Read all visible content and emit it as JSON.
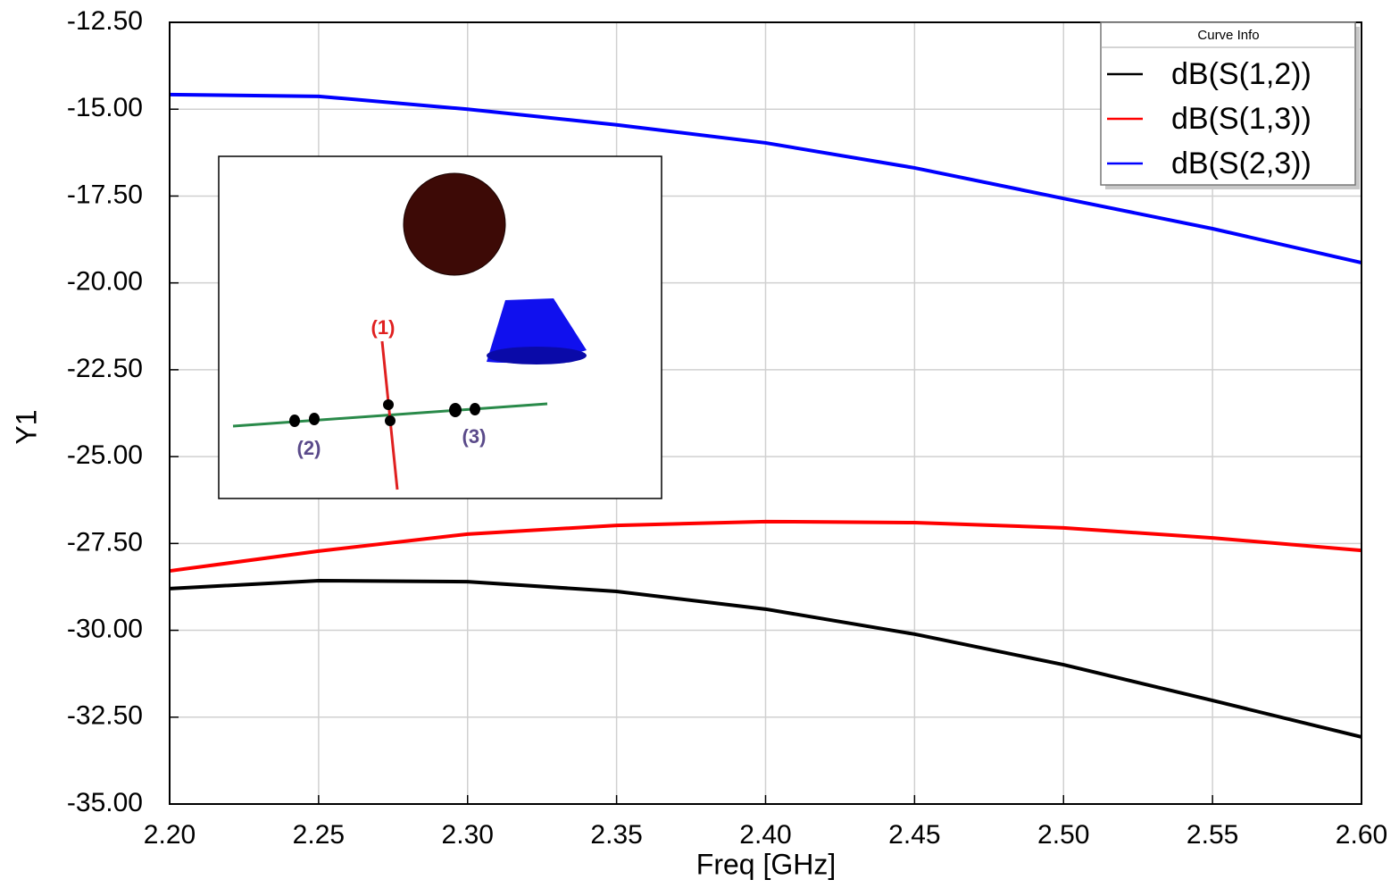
{
  "chart_data": {
    "type": "line",
    "x_label": "Freq [GHz]",
    "y_label": "Y1",
    "legend_title": "Curve Info",
    "legend_position": "upper right",
    "grid": true,
    "x": [
      2.2,
      2.25,
      2.3,
      2.35,
      2.4,
      2.45,
      2.5,
      2.55,
      2.6
    ],
    "series": [
      {
        "name": "dB(S(1,2))",
        "color": "#000000",
        "values": [
          -28.8,
          -28.57,
          -28.6,
          -28.88,
          -29.39,
          -30.11,
          -30.99,
          -32.02,
          -33.07
        ]
      },
      {
        "name": "dB(S(1,3))",
        "color": "#ff0000",
        "values": [
          -28.29,
          -27.72,
          -27.23,
          -26.98,
          -26.87,
          -26.9,
          -27.05,
          -27.34,
          -27.7
        ]
      },
      {
        "name": "dB(S(2,3))",
        "color": "#0000ff",
        "values": [
          -14.58,
          -14.63,
          -15.0,
          -15.45,
          -15.97,
          -16.69,
          -17.57,
          -18.44,
          -19.42
        ]
      }
    ],
    "xlim": [
      2.2,
      2.6
    ],
    "xticks": [
      {
        "value": 2.2,
        "label": "2.20"
      },
      2.25,
      {
        "value": 2.3,
        "label": "2.30"
      },
      2.35,
      {
        "value": 2.4,
        "label": "2.40"
      },
      2.45,
      {
        "value": 2.5,
        "label": "2.50"
      },
      2.55,
      {
        "value": 2.6,
        "label": "2.60"
      }
    ],
    "ylim": [
      -35,
      -12.5
    ],
    "yticks": [
      {
        "value": -12.5,
        "label": "-12.50"
      },
      {
        "value": -15,
        "label": "-15.00"
      },
      {
        "value": -17.5,
        "label": "-17.50"
      },
      {
        "value": -20,
        "label": "-20.00"
      },
      {
        "value": -22.5,
        "label": "-22.50"
      },
      {
        "value": -25,
        "label": "-25.00"
      },
      {
        "value": -27.5,
        "label": "-27.50"
      },
      {
        "value": -30,
        "label": "-30.00"
      },
      {
        "value": -32.5,
        "label": "-32.50"
      },
      {
        "value": -35,
        "label": "-35.00"
      }
    ],
    "inset_labels": [
      "(1)",
      "(2)",
      "(3)"
    ]
  }
}
